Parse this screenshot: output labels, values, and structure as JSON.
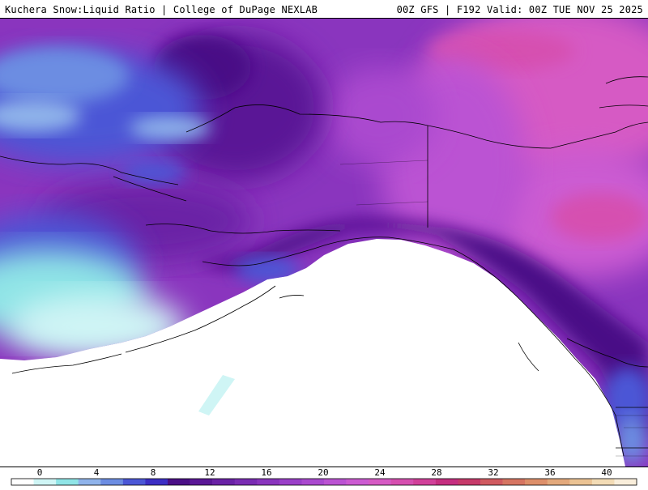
{
  "header": {
    "left_title": "Kuchera Snow:Liquid Ratio | College of DuPage NEXLAB",
    "right_title": "00Z GFS | F192 Valid: 00Z TUE NOV 25 2025"
  },
  "map": {
    "region": "Alaska / Gulf of Alaska / Pacific Northwest",
    "ocean_color": "#ffffff",
    "border_color": "#000000"
  },
  "colorbar": {
    "tick_labels": [
      "0",
      "4",
      "8",
      "12",
      "16",
      "20",
      "24",
      "28",
      "32",
      "36",
      "40"
    ],
    "colors": [
      "#ffffff",
      "#cff5f5",
      "#8fe4e6",
      "#8fb3ea",
      "#6c8de2",
      "#4b57d6",
      "#3c2ec4",
      "#4a0f86",
      "#5a1796",
      "#6a22a6",
      "#7a2cb3",
      "#8a35be",
      "#9a3fc8",
      "#aa49cf",
      "#bb53d3",
      "#cc5bd2",
      "#d65ac4",
      "#d64fb0",
      "#d1409a",
      "#c52e80",
      "#c63a6a",
      "#d05a60",
      "#d67562",
      "#dd8f6a",
      "#e3a97c",
      "#ebc394",
      "#f3dcb6",
      "#f9eedb"
    ]
  }
}
